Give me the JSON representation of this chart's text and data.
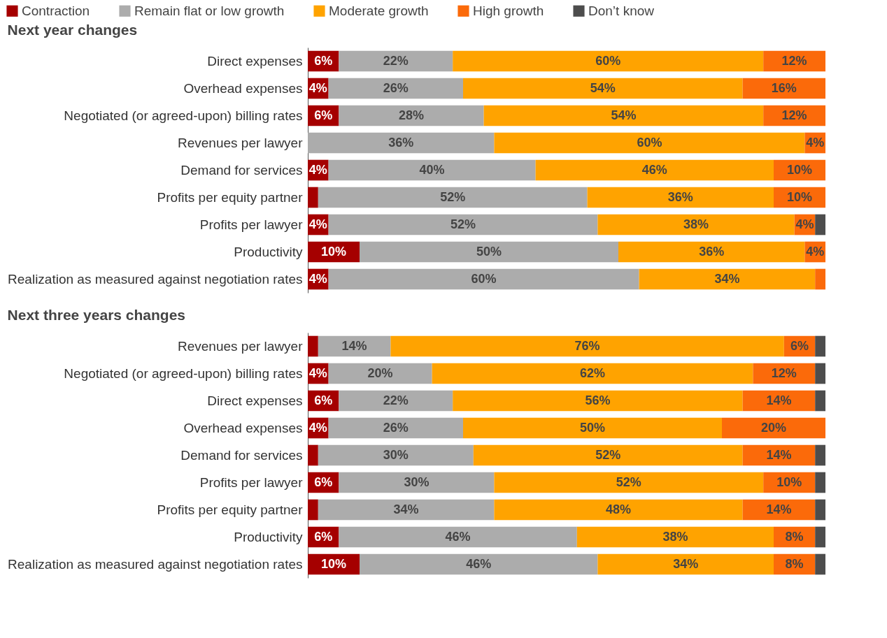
{
  "chart_data": [
    {
      "type": "bar",
      "orientation": "horizontal",
      "stacked": true,
      "title": "Next year changes",
      "legend": "top",
      "categories": [
        "Direct expenses",
        "Overhead expenses",
        "Negotiated (or agreed-upon) billing rates",
        "Revenues per lawyer",
        "Demand for services",
        "Profits per equity partner",
        "Profits per lawyer",
        "Productivity",
        "Realization as measured against negotiation rates"
      ],
      "series": [
        {
          "name": "Contraction",
          "color": "#a50000",
          "values": [
            6,
            4,
            6,
            0,
            4,
            2,
            4,
            10,
            4
          ],
          "value_labels": [
            "6%",
            "4%",
            "6%",
            null,
            "4%",
            null,
            "4%",
            "10%",
            "4%"
          ]
        },
        {
          "name": "Remain flat or low growth",
          "color": "#acacac",
          "values": [
            22,
            26,
            28,
            36,
            40,
            52,
            52,
            50,
            60
          ],
          "value_labels": [
            "22%",
            "26%",
            "28%",
            "36%",
            "40%",
            "52%",
            "52%",
            "50%",
            "60%"
          ]
        },
        {
          "name": "Moderate growth",
          "color": "#ffa300",
          "values": [
            60,
            54,
            54,
            60,
            46,
            36,
            38,
            36,
            34
          ],
          "value_labels": [
            "60%",
            "54%",
            "54%",
            "60%",
            "46%",
            "36%",
            "38%",
            "36%",
            "34%"
          ]
        },
        {
          "name": "High growth",
          "color": "#fb6a0a",
          "values": [
            12,
            16,
            12,
            4,
            10,
            10,
            4,
            4,
            2
          ],
          "value_labels": [
            "12%",
            "16%",
            "12%",
            "4%",
            "10%",
            "10%",
            "4%",
            "4%",
            null
          ]
        },
        {
          "name": "Don’t know",
          "color": "#4d4d4d",
          "values": [
            0,
            0,
            0,
            0,
            0,
            0,
            2,
            0,
            0
          ],
          "value_labels": [
            null,
            null,
            null,
            null,
            null,
            null,
            null,
            null,
            null
          ]
        }
      ]
    },
    {
      "type": "bar",
      "orientation": "horizontal",
      "stacked": true,
      "title": "Next three years changes",
      "legend": "top",
      "categories": [
        "Revenues per lawyer",
        "Negotiated (or agreed-upon) billing rates",
        "Direct expenses",
        "Overhead expenses",
        "Demand for services",
        "Profits per lawyer",
        "Profits per equity partner",
        "Productivity",
        "Realization as measured against negotiation rates"
      ],
      "series": [
        {
          "name": "Contraction",
          "color": "#a50000",
          "values": [
            2,
            4,
            6,
            4,
            2,
            6,
            2,
            6,
            10
          ],
          "value_labels": [
            null,
            "4%",
            "6%",
            "4%",
            null,
            "6%",
            null,
            "6%",
            "10%"
          ]
        },
        {
          "name": "Remain flat or low growth",
          "color": "#acacac",
          "values": [
            14,
            20,
            22,
            26,
            30,
            30,
            34,
            46,
            46
          ],
          "value_labels": [
            "14%",
            "20%",
            "22%",
            "26%",
            "30%",
            "30%",
            "34%",
            "46%",
            "46%"
          ]
        },
        {
          "name": "Moderate growth",
          "color": "#ffa300",
          "values": [
            76,
            62,
            56,
            50,
            52,
            52,
            48,
            38,
            34
          ],
          "value_labels": [
            "76%",
            "62%",
            "56%",
            "50%",
            "52%",
            "52%",
            "48%",
            "38%",
            "34%"
          ]
        },
        {
          "name": "High growth",
          "color": "#fb6a0a",
          "values": [
            6,
            12,
            14,
            20,
            14,
            10,
            14,
            8,
            8
          ],
          "value_labels": [
            "6%",
            "12%",
            "14%",
            "20%",
            "14%",
            "10%",
            "14%",
            "8%",
            "8%"
          ]
        },
        {
          "name": "Don’t know",
          "color": "#4d4d4d",
          "values": [
            2,
            2,
            2,
            0,
            2,
            2,
            2,
            2,
            2
          ],
          "value_labels": [
            null,
            null,
            null,
            null,
            null,
            null,
            null,
            null,
            null
          ]
        }
      ]
    }
  ]
}
